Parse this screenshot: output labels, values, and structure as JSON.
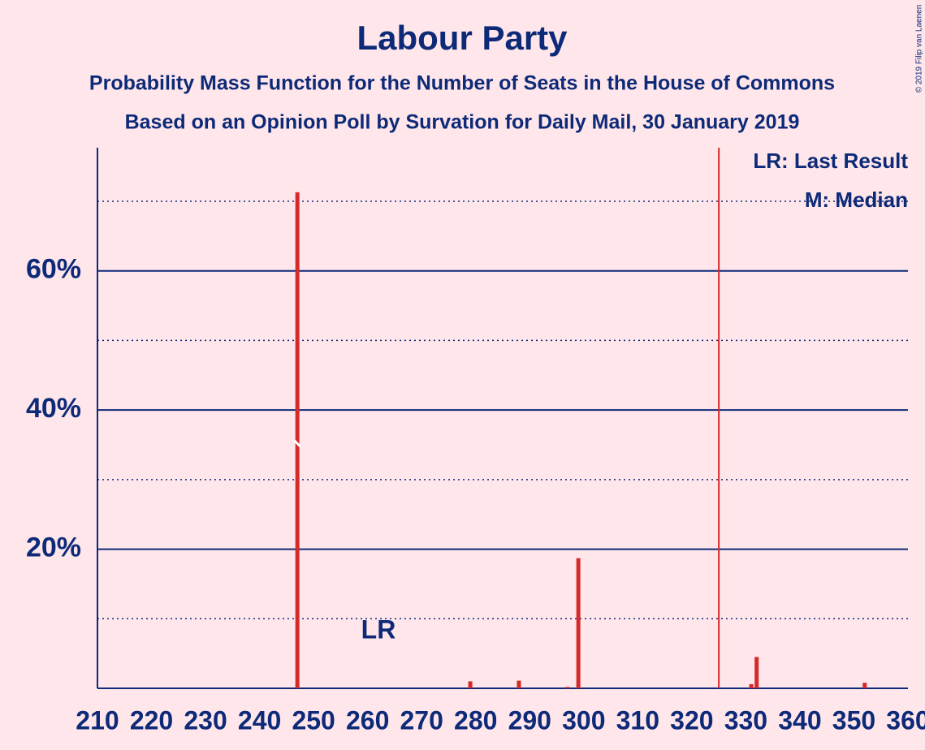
{
  "chart_data": {
    "type": "bar",
    "title": "Labour Party",
    "subtitle": "Probability Mass Function for the Number of Seats in the House of Commons",
    "subtitle2": "Based on an Opinion Poll by Survation for Daily Mail, 30 January 2019",
    "copyright": "© 2019 Filip van Laenen",
    "legend": [
      "LR: Last Result",
      "M: Median"
    ],
    "x": [
      247,
      279,
      288,
      297,
      299,
      331,
      332,
      352
    ],
    "values": [
      71.3,
      1.0,
      1.1,
      0.2,
      18.7,
      0.6,
      4.5,
      0.8
    ],
    "color": "#d42a2a",
    "xlim": [
      210,
      360
    ],
    "xticks": [
      210,
      220,
      230,
      240,
      250,
      260,
      270,
      280,
      290,
      300,
      310,
      320,
      330,
      340,
      350,
      360
    ],
    "ylim": [
      0,
      77.7
    ],
    "yticks": [
      {
        "value": 20,
        "label": "20%"
      },
      {
        "value": 40,
        "label": "40%"
      },
      {
        "value": 60,
        "label": "60%"
      }
    ],
    "minor_yticks": [
      10,
      30,
      50,
      70
    ],
    "median": 247,
    "last_result": {
      "x": 262,
      "label": "LR"
    },
    "majority_line": 325
  }
}
